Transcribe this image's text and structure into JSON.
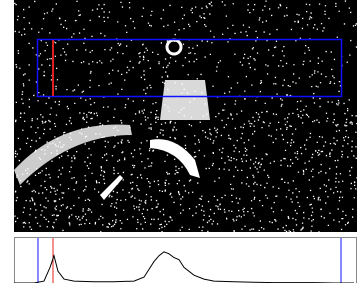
{
  "chart_data": {
    "type": "line",
    "x": [
      0,
      10,
      20,
      30,
      36,
      40,
      44,
      50,
      60,
      80,
      100,
      120,
      130,
      135,
      140,
      145,
      150,
      155,
      160,
      165,
      170,
      180,
      190,
      200,
      220,
      240,
      260,
      280,
      300,
      320,
      340
    ],
    "values": [
      0,
      0,
      0,
      5,
      40,
      70,
      30,
      10,
      5,
      3,
      3,
      5,
      15,
      35,
      55,
      70,
      80,
      75,
      65,
      60,
      40,
      20,
      10,
      5,
      3,
      2,
      1,
      1,
      1,
      0,
      0
    ],
    "color": "#000000",
    "xlim": [
      0,
      343
    ],
    "ylim": [
      0,
      100
    ]
  }
}
